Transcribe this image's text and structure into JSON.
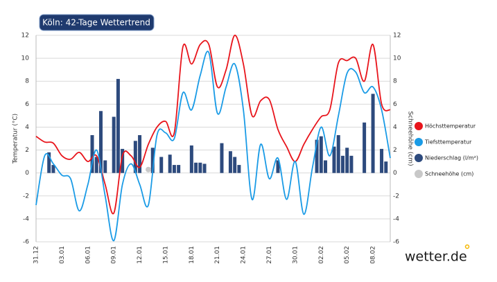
{
  "chart_data": {
    "type": "line",
    "title": "Köln: 42-Tage Wettertrend",
    "ylabel": "Temperatur (°C)",
    "y2label": "Schneehöhe (cm)",
    "brand": "wetter.de",
    "xlim": [
      0,
      41
    ],
    "ylim": [
      -6,
      12
    ],
    "y2lim": [
      -6,
      12
    ],
    "yticks": [
      -6,
      -4,
      -2,
      0,
      2,
      4,
      6,
      8,
      10,
      12
    ],
    "y2ticks": [
      -6,
      -4,
      -2,
      0,
      2,
      4,
      6,
      8,
      10,
      12
    ],
    "xticks": [
      {
        "value": 0,
        "label": "31.12"
      },
      {
        "value": 3,
        "label": "03.01"
      },
      {
        "value": 6,
        "label": "06.01"
      },
      {
        "value": 9,
        "label": "09.01"
      },
      {
        "value": 12,
        "label": "12.01"
      },
      {
        "value": 15,
        "label": "15.01"
      },
      {
        "value": 18,
        "label": "18.01"
      },
      {
        "value": 21,
        "label": "21.01"
      },
      {
        "value": 24,
        "label": "24.01"
      },
      {
        "value": 27,
        "label": "27.01"
      },
      {
        "value": 30,
        "label": "30.01"
      },
      {
        "value": 33,
        "label": "02.02"
      },
      {
        "value": 36,
        "label": "05.02"
      },
      {
        "value": 39,
        "label": "08.02"
      }
    ],
    "grid": true,
    "legend": "right",
    "x": [
      0,
      1,
      2,
      3,
      4,
      5,
      6,
      7,
      8,
      9,
      10,
      11,
      12,
      13,
      14,
      15,
      16,
      17,
      18,
      19,
      20,
      21,
      22,
      23,
      24,
      25,
      26,
      27,
      28,
      29,
      30,
      31,
      32,
      33,
      34,
      35,
      36,
      37,
      38,
      39,
      40,
      41
    ],
    "series": [
      {
        "name": "Höchsttemperatur",
        "color": "#e8141b",
        "type": "line",
        "values": [
          3.2,
          2.7,
          2.6,
          1.5,
          1.2,
          1.8,
          1.0,
          1.5,
          -1.0,
          -3.5,
          1.5,
          1.5,
          0.5,
          2.5,
          4.0,
          4.5,
          3.5,
          11.0,
          9.5,
          11.2,
          11.2,
          7.5,
          9.0,
          12.0,
          9.5,
          5.0,
          6.3,
          6.4,
          3.8,
          2.3,
          1.0,
          2.5,
          3.8,
          4.9,
          5.5,
          9.6,
          9.8,
          10.0,
          8.0,
          11.2,
          6.0,
          5.5
        ]
      },
      {
        "name": "Tiefsttemperatur",
        "color": "#1a9be6",
        "type": "line",
        "values": [
          -2.8,
          1.5,
          0.8,
          -0.2,
          -0.5,
          -3.3,
          -1.0,
          2.0,
          -2.0,
          -5.9,
          -1.0,
          0.8,
          -1.0,
          -2.8,
          3.3,
          3.5,
          3.0,
          7.0,
          5.5,
          8.5,
          10.5,
          5.2,
          7.5,
          9.5,
          5.5,
          -2.3,
          2.5,
          -0.5,
          1.3,
          -2.3,
          1.0,
          -3.6,
          0.5,
          4.0,
          1.5,
          5.0,
          8.7,
          8.8,
          7.0,
          7.5,
          5.5,
          1.3
        ]
      },
      {
        "name": "Niederschlag (l/m²)",
        "color": "#2d4a7d",
        "type": "bar",
        "axis": "y2",
        "x": [
          1.5,
          2,
          6.5,
          7,
          7.5,
          8,
          9,
          9.5,
          10,
          11.5,
          12,
          13.5,
          14.5,
          15.5,
          16,
          16.5,
          18,
          18.5,
          19,
          19.5,
          21.5,
          22.5,
          23,
          23.5,
          28,
          32.5,
          33,
          33.5,
          34.5,
          35,
          35.5,
          36,
          36.5,
          38,
          39,
          40,
          40.5
        ],
        "values": [
          1.8,
          0.7,
          3.3,
          1.4,
          5.4,
          1.1,
          4.9,
          8.2,
          2.1,
          2.8,
          3.3,
          2.2,
          1.4,
          1.6,
          0.7,
          0.7,
          2.4,
          0.9,
          0.9,
          0.8,
          2.6,
          1.9,
          1.4,
          0.7,
          1.1,
          2.9,
          3.2,
          1.1,
          2.3,
          3.3,
          1.5,
          2.2,
          1.5,
          4.4,
          6.9,
          2.1,
          1.0
        ]
      },
      {
        "name": "Schneehöhe (cm)",
        "color": "#c8c8c8",
        "type": "scatter",
        "axis": "y2",
        "x": [
          13
        ],
        "values": [
          0.3
        ]
      }
    ]
  }
}
